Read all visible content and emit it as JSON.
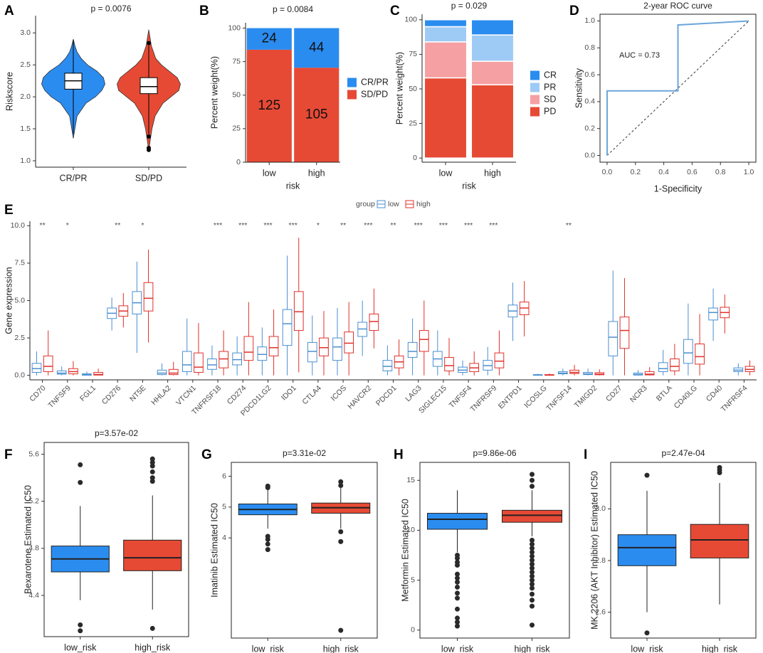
{
  "chart_data": [
    {
      "type": "violin",
      "label": "A",
      "title": "p = 0.0076",
      "y_label": "Riskscore",
      "frame": "axes",
      "categories": [
        "CR/PR",
        "SD/PD"
      ],
      "series": [
        {
          "color": "#2b8cf0",
          "density_y": [
            1.35,
            1.5,
            1.7,
            1.9,
            2.0,
            2.1,
            2.2,
            2.3,
            2.4,
            2.5,
            2.6,
            2.7,
            2.8,
            2.9
          ],
          "density": [
            0,
            0.05,
            0.12,
            0.4,
            0.7,
            0.9,
            1,
            0.95,
            0.75,
            0.45,
            0.25,
            0.12,
            0.05,
            0
          ],
          "min": 1.42,
          "q1": 2.12,
          "median": 2.25,
          "q3": 2.37,
          "max": 2.9,
          "outliers": []
        },
        {
          "color": "#e64a35",
          "density_y": [
            1.15,
            1.3,
            1.5,
            1.7,
            1.9,
            2.0,
            2.1,
            2.2,
            2.3,
            2.4,
            2.5,
            2.6,
            2.8,
            3.05
          ],
          "density": [
            0,
            0.04,
            0.1,
            0.2,
            0.45,
            0.7,
            0.95,
            1,
            0.9,
            0.65,
            0.4,
            0.22,
            0.08,
            0
          ],
          "min": 1.42,
          "q1": 2.05,
          "median": 2.16,
          "q3": 2.3,
          "max": 2.8,
          "outliers": [
            2.84,
            1.38,
            1.2,
            1.17
          ]
        }
      ],
      "ylim": [
        0.9,
        3.27
      ],
      "yticks": [
        {
          "value": 1,
          "label": "1.0"
        },
        1.5,
        {
          "value": 2,
          "label": "2.0"
        },
        2.5,
        {
          "value": 3,
          "label": "3.0"
        }
      ]
    },
    {
      "type": "stacked_bar",
      "label": "B",
      "title": "p = 0.0084",
      "y_label": "Percent weight(%)",
      "x_label": "risk",
      "frame": "axes",
      "stacking": "percent",
      "data_labels": true,
      "categories": [
        "low",
        "high"
      ],
      "series": [
        {
          "name": "CR/PR",
          "color": "#2b8cf0",
          "values": [
            24,
            44
          ]
        },
        {
          "name": "SD/PD",
          "color": "#e64a35",
          "values": [
            125,
            105
          ]
        }
      ],
      "ylim": [
        0,
        104
      ],
      "yticks": [
        0,
        25,
        50,
        75,
        100
      ]
    },
    {
      "type": "stacked_bar",
      "label": "C",
      "title": "p = 0.029",
      "y_label": "Percent weight(%)",
      "x_label": "risk",
      "frame": "axes",
      "stacking": "percent",
      "data_labels": false,
      "categories": [
        "low",
        "high"
      ],
      "series": [
        {
          "name": "CR",
          "color": "#2b8cf0",
          "values": [
            5,
            11
          ]
        },
        {
          "name": "PR",
          "color": "#9ecbf5",
          "values": [
            11,
            19
          ]
        },
        {
          "name": "SD",
          "color": "#f5a0a3",
          "values": [
            26,
            17
          ]
        },
        {
          "name": "PD",
          "color": "#e64a35",
          "values": [
            58,
            53
          ]
        }
      ],
      "ylim": [
        -3,
        104
      ],
      "yticks": [
        0,
        25,
        50,
        75,
        100
      ]
    },
    {
      "type": "roc",
      "label": "D",
      "title": "2-year ROC curve",
      "annotation": "AUC = 0.73",
      "x_label": "1-Specificity",
      "y_label": "Sensitivity",
      "frame": "box",
      "color": "#6ca6d9",
      "x": [
        0,
        0,
        0.5,
        0.5,
        1
      ],
      "y": [
        0,
        0.48,
        0.48,
        0.97,
        1
      ],
      "xlim": [
        -0.05,
        1.05
      ],
      "ylim": [
        -0.05,
        1.05
      ],
      "xticks": [
        {
          "value": 0,
          "label": "0.0"
        },
        0.2,
        0.4,
        0.6,
        0.8,
        {
          "value": 1,
          "label": "1.0"
        }
      ],
      "yticks": [
        {
          "value": 0,
          "label": "0.0"
        },
        0.2,
        0.4,
        0.6,
        0.8,
        {
          "value": 1,
          "label": "1.0"
        }
      ]
    },
    {
      "type": "grouped_boxplot",
      "label": "E",
      "y_label": "Gene expression",
      "legend_title": "group",
      "frame": "axes",
      "rotate_x_labels": true,
      "categories": [
        "CD70",
        "TNFSF9",
        "FGL1",
        "CD276",
        "NT5E",
        "HHLA2",
        "VTCN1",
        "TNFRSF18",
        "CD274",
        "PDCD1LG2",
        "IDO1",
        "CTLA4",
        "ICOS",
        "HAVCR2",
        "PDCD1",
        "LAG3",
        "SIGLEC15",
        "TNFSF4",
        "TNFRSF9",
        "ENTPD1",
        "ICOSLG",
        "TNFSF14",
        "TMIGD2",
        "CD27",
        "NCR3",
        "BTLA",
        "CD40LG",
        "CD40",
        "TNFRSF4"
      ],
      "significance": [
        "**",
        "*",
        null,
        "**",
        "*",
        null,
        null,
        "***",
        "***",
        "***",
        "***",
        "*",
        "**",
        "***",
        "**",
        "***",
        "***",
        "***",
        "***",
        null,
        null,
        "**",
        null,
        null,
        null,
        null,
        null,
        null,
        null
      ],
      "series": [
        {
          "name": "low",
          "color": "#4a8fd0",
          "boxes": [
            [
              0,
              0.2,
              0.45,
              0.8,
              1.6
            ],
            [
              0,
              0.08,
              0.15,
              0.3,
              0.6
            ],
            [
              0,
              0.01,
              0.04,
              0.1,
              0.25
            ],
            [
              3.0,
              3.8,
              4.15,
              4.5,
              5.2
            ],
            [
              1.5,
              4.1,
              4.85,
              5.6,
              7.6
            ],
            [
              0,
              0.05,
              0.15,
              0.35,
              0.8
            ],
            [
              0,
              0.25,
              0.7,
              1.6,
              3.8
            ],
            [
              0,
              0.4,
              0.7,
              1.1,
              2.0
            ],
            [
              0,
              0.7,
              1.05,
              1.5,
              2.6
            ],
            [
              0,
              1.0,
              1.4,
              1.9,
              3.2
            ],
            [
              0,
              2.0,
              3.45,
              4.4,
              8.0
            ],
            [
              0,
              0.9,
              1.6,
              2.2,
              4.0
            ],
            [
              0,
              1.0,
              1.9,
              2.5,
              4.5
            ],
            [
              1.3,
              2.6,
              3.1,
              3.55,
              5.0
            ],
            [
              0,
              0.3,
              0.6,
              1.0,
              2.0
            ],
            [
              0,
              1.2,
              1.6,
              2.2,
              3.8
            ],
            [
              0,
              0.6,
              1.1,
              1.6,
              3.0
            ],
            [
              0,
              0.2,
              0.35,
              0.55,
              1.0
            ],
            [
              0,
              0.35,
              0.65,
              1.0,
              1.9
            ],
            [
              2.3,
              3.9,
              4.3,
              4.7,
              6.2
            ],
            [
              0,
              0.005,
              0.02,
              0.05,
              0.11
            ],
            [
              0,
              0.1,
              0.15,
              0.25,
              0.45
            ],
            [
              0,
              0.05,
              0.1,
              0.2,
              0.45
            ],
            [
              0,
              1.3,
              2.55,
              3.6,
              7.0
            ],
            [
              0,
              0.02,
              0.06,
              0.15,
              0.35
            ],
            [
              0,
              0.25,
              0.45,
              0.85,
              1.7
            ],
            [
              0,
              0.8,
              1.5,
              2.4,
              4.8
            ],
            [
              2.3,
              3.7,
              4.2,
              4.5,
              5.8
            ],
            [
              0,
              0.25,
              0.35,
              0.5,
              0.8
            ]
          ]
        },
        {
          "name": "high",
          "color": "#e0302a",
          "boxes": [
            [
              0,
              0.25,
              0.6,
              1.3,
              3.0
            ],
            [
              0,
              0.1,
              0.25,
              0.45,
              0.95
            ],
            [
              0,
              0.02,
              0.06,
              0.2,
              0.45
            ],
            [
              3.2,
              3.95,
              4.3,
              4.65,
              5.5
            ],
            [
              2.2,
              4.3,
              5.15,
              6.2,
              8.4
            ],
            [
              0,
              0.05,
              0.15,
              0.4,
              0.9
            ],
            [
              0,
              0.2,
              0.55,
              1.5,
              3.5
            ],
            [
              0,
              0.5,
              1.1,
              1.6,
              3.0
            ],
            [
              0,
              1.0,
              1.55,
              2.6,
              4.9
            ],
            [
              0,
              1.3,
              1.85,
              2.6,
              4.4
            ],
            [
              0.2,
              3.0,
              4.25,
              5.6,
              9.2
            ],
            [
              0,
              1.3,
              1.85,
              2.5,
              4.3
            ],
            [
              0,
              1.5,
              2.15,
              2.9,
              4.9
            ],
            [
              1.8,
              3.0,
              3.6,
              4.1,
              5.8
            ],
            [
              0,
              0.5,
              0.9,
              1.3,
              2.4
            ],
            [
              0,
              1.6,
              2.4,
              3.0,
              5.0
            ],
            [
              0,
              0.3,
              0.65,
              1.2,
              2.5
            ],
            [
              0,
              0.25,
              0.5,
              0.8,
              1.6
            ],
            [
              0,
              0.5,
              0.95,
              1.5,
              3.0
            ],
            [
              2.6,
              4.05,
              4.5,
              4.9,
              6.3
            ],
            [
              0,
              0.005,
              0.02,
              0.05,
              0.12
            ],
            [
              0,
              0.12,
              0.2,
              0.35,
              0.7
            ],
            [
              0,
              0.04,
              0.08,
              0.18,
              0.4
            ],
            [
              0,
              1.8,
              3.0,
              3.9,
              6.5
            ],
            [
              0,
              0.03,
              0.08,
              0.25,
              0.55
            ],
            [
              0,
              0.3,
              0.6,
              1.1,
              2.1
            ],
            [
              0,
              0.75,
              1.25,
              2.1,
              4.1
            ],
            [
              2.8,
              3.85,
              4.2,
              4.55,
              5.4
            ],
            [
              0,
              0.25,
              0.4,
              0.6,
              1.0
            ]
          ]
        }
      ],
      "ylim": [
        -0.3,
        10.3
      ],
      "yticks": [
        {
          "value": 0,
          "label": "0.0"
        },
        2.5,
        {
          "value": 5,
          "label": "5.0"
        },
        7.5,
        {
          "value": 10,
          "label": "10.0"
        }
      ]
    },
    {
      "type": "boxplot",
      "label": "F",
      "title": "p=3.57e-02",
      "y_label": "Bexarotene Estimated IC50",
      "frame": "box",
      "categories": [
        "low_risk",
        "high_risk"
      ],
      "colors": [
        "#2b8cf0",
        "#e64a35"
      ],
      "boxes": [
        {
          "min": 4.36,
          "q1": 4.6,
          "median": 4.71,
          "q3": 4.82,
          "max": 5.16,
          "outliers": [
            5.51,
            5.36,
            4.15,
            4.1
          ]
        },
        {
          "min": 4.28,
          "q1": 4.61,
          "median": 4.72,
          "q3": 4.87,
          "max": 5.25,
          "outliers": [
            5.56,
            5.53,
            5.5,
            5.45,
            5.4,
            5.37,
            4.12
          ]
        }
      ],
      "ylim": [
        4.05,
        5.7
      ],
      "yticks": [
        4.4,
        4.8,
        5.2,
        5.6
      ]
    },
    {
      "type": "boxplot",
      "label": "G",
      "title": "p=3.31e-02",
      "y_label": "Imatinib  Estimated IC50",
      "frame": "box",
      "categories": [
        "low_risk",
        "high_risk"
      ],
      "colors": [
        "#2b8cf0",
        "#e64a35"
      ],
      "boxes": [
        {
          "min": 4.3,
          "q1": 4.75,
          "median": 4.92,
          "q3": 5.1,
          "max": 5.6,
          "outliers": [
            5.68,
            5.63,
            4.05,
            3.95,
            3.8,
            3.62
          ]
        },
        {
          "min": 4.3,
          "q1": 4.8,
          "median": 4.98,
          "q3": 5.13,
          "max": 5.62,
          "outliers": [
            5.82,
            5.7,
            4.2,
            3.88,
            1.0
          ]
        }
      ],
      "ylim": [
        0.75,
        6.45
      ],
      "yticks": [
        4,
        5,
        6
      ]
    },
    {
      "type": "boxplot",
      "label": "H",
      "title": "p=9.86e-06",
      "y_label": "Metformin Estimated IC50",
      "frame": "box",
      "categories": [
        "low_risk",
        "high_risk"
      ],
      "colors": [
        "#2b8cf0",
        "#e64a35"
      ],
      "boxes": [
        {
          "min": 7.8,
          "q1": 10.1,
          "median": 11.1,
          "q3": 11.7,
          "max": 14.0,
          "outliers": [
            7.5,
            7.2,
            6.8,
            6.5,
            5.6,
            5.2,
            4.8,
            4.3,
            3.7,
            3.2,
            2.1,
            1.2,
            0.8,
            0.4
          ]
        },
        {
          "min": 9.4,
          "q1": 10.8,
          "median": 11.5,
          "q3": 12.0,
          "max": 14.0,
          "outliers": [
            15.6,
            15.0,
            14.4,
            9.0,
            8.6,
            8.2,
            7.8,
            7.4,
            7.0,
            6.6,
            6.2,
            5.8,
            5.4,
            5.0,
            4.6,
            4.2,
            3.6,
            3.0,
            2.4,
            0.5
          ]
        }
      ],
      "ylim": [
        -0.8,
        16.8
      ],
      "yticks": [
        0,
        5,
        10,
        15
      ]
    },
    {
      "type": "boxplot",
      "label": "I",
      "title": "p=2.47e-04",
      "y_label": "MK.2206  (AKT Inhibitor) Estimated IC50",
      "frame": "box",
      "categories": [
        "low_risk",
        "high_risk"
      ],
      "colors": [
        "#2b8cf0",
        "#e64a35"
      ],
      "boxes": [
        {
          "min": 2.6,
          "q1": 2.78,
          "median": 2.85,
          "q3": 2.9,
          "max": 3.07,
          "outliers": [
            3.13,
            2.52
          ]
        },
        {
          "min": 2.63,
          "q1": 2.81,
          "median": 2.88,
          "q3": 2.94,
          "max": 3.1,
          "outliers": [
            3.16,
            3.15,
            3.14
          ]
        }
      ],
      "ylim": [
        2.5,
        3.18
      ],
      "yticks": [
        2.6,
        2.8,
        {
          "value": 3,
          "label": "3.0"
        }
      ]
    }
  ]
}
